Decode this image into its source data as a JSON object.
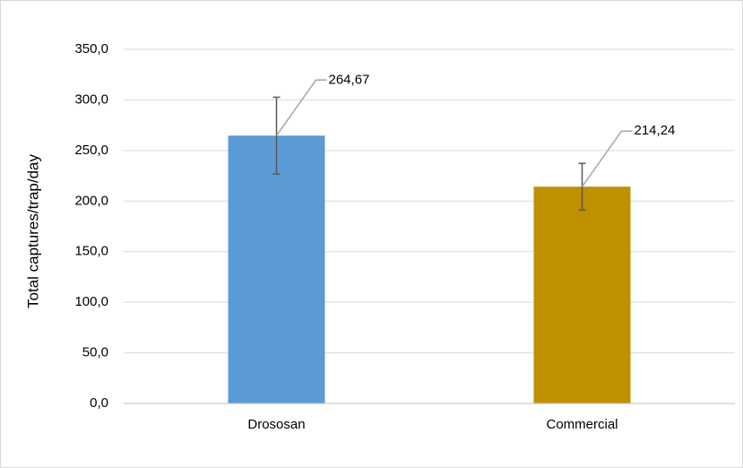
{
  "chart_data": {
    "type": "bar",
    "y_label": "Total captures/trap/day",
    "categories": [
      "Drososan",
      "Commercial"
    ],
    "values": [
      264.67,
      214.24
    ],
    "value_labels": [
      "264,67",
      "214,24"
    ],
    "errors": [
      38,
      23
    ],
    "colors": [
      "#5b9bd5",
      "#bf9000"
    ],
    "ylim": [
      0,
      350
    ],
    "yticks": [
      {
        "value": 0,
        "label": "0,0"
      },
      {
        "value": 50,
        "label": "50,0"
      },
      {
        "value": 100,
        "label": "100,0"
      },
      {
        "value": 150,
        "label": "150,0"
      },
      {
        "value": 200,
        "label": "200,0"
      },
      {
        "value": 250,
        "label": "250,0"
      },
      {
        "value": 300,
        "label": "300,0"
      },
      {
        "value": 350,
        "label": "350,0"
      }
    ],
    "grid": true
  }
}
